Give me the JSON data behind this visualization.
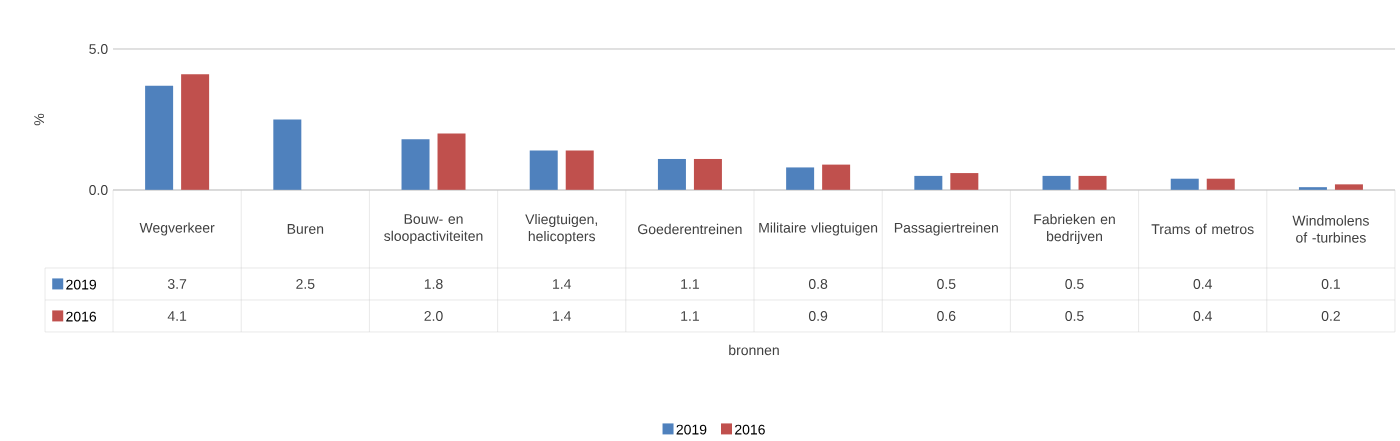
{
  "chart_data": {
    "type": "bar",
    "annotations": [
      "bronnen"
    ],
    "ylabel": "%",
    "categories": [
      "Wegverkeer",
      "Buren",
      "Bouw- en sloopactiviteiten",
      "Vliegtuigen, helicopters",
      "Goederentreinen",
      "Militaire vliegtuigen",
      "Passagiertreinen",
      "Fabrieken en bedrijven",
      "Trams of metros",
      "Windmolens of -turbines"
    ],
    "series": [
      {
        "name": "2019",
        "color": "#4f81bd",
        "values": [
          3.7,
          2.5,
          1.8,
          1.4,
          1.1,
          0.8,
          0.5,
          0.5,
          0.4,
          0.1
        ],
        "value_labels": [
          "3.7",
          "2.5",
          "1.8",
          "1.4",
          "1.1",
          "0.8",
          "0.5",
          "0.5",
          "0.4",
          "0.1"
        ]
      },
      {
        "name": "2016",
        "color": "#c0504d",
        "values": [
          4.1,
          null,
          2.0,
          1.4,
          1.1,
          0.9,
          0.6,
          0.5,
          0.4,
          0.2
        ],
        "value_labels": [
          "4.1",
          null,
          "2.0",
          "1.4",
          "1.1",
          "0.9",
          "0.6",
          "0.5",
          "0.4",
          "0.2"
        ]
      }
    ],
    "ylim": [
      0,
      5
    ],
    "yticks": [
      {
        "value": 0,
        "label": "0.0"
      },
      {
        "value": 5,
        "label": "5.0"
      }
    ],
    "grid": "y",
    "legend": "bottom"
  }
}
